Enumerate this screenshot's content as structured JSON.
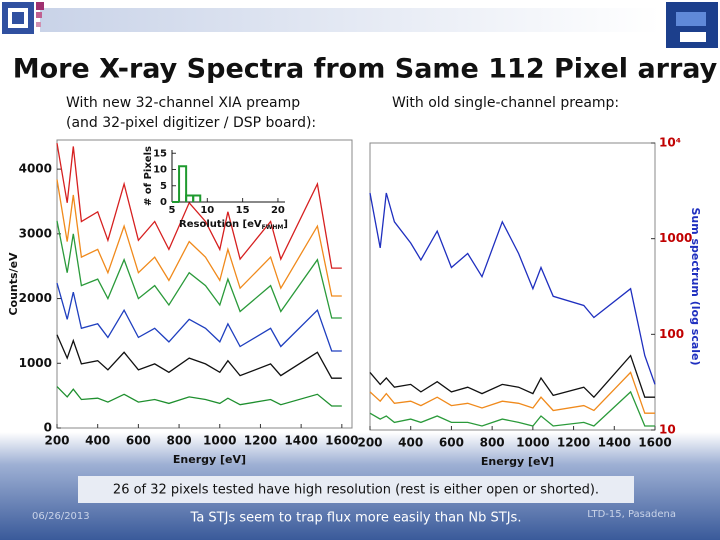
{
  "header": {
    "title": "More X-ray Spectra from Same 112 Pixel array"
  },
  "captions": {
    "left": [
      "With new 32-channel XIA preamp",
      "(and 32-pixel digitizer / DSP board):"
    ],
    "right": "With old single-channel preamp:"
  },
  "chart_data": [
    {
      "type": "line",
      "xlabel": "Energy [eV]",
      "ylabel": "Counts/eV",
      "x": [
        200,
        250,
        280,
        320,
        400,
        450,
        530,
        600,
        680,
        750,
        850,
        930,
        1000,
        1040,
        1100,
        1250,
        1300,
        1480,
        1550,
        1600
      ],
      "xlim": [
        200,
        1650
      ],
      "xticks": [
        200,
        400,
        600,
        800,
        1000,
        1200,
        1400,
        1600
      ],
      "ylim": [
        0,
        4450
      ],
      "yticks": [
        0,
        1000,
        2000,
        3000,
        4000
      ],
      "series": [
        {
          "color": "#d62020",
          "values": [
            4400,
            3480,
            4350,
            3190,
            3340,
            2900,
            3770,
            2900,
            3190,
            2760,
            3480,
            3190,
            2760,
            3340,
            2610,
            3190,
            2610,
            3770,
            2470,
            2470
          ]
        },
        {
          "color": "#f08a1c",
          "values": [
            3840,
            2880,
            3600,
            2640,
            2760,
            2400,
            3120,
            2400,
            2640,
            2280,
            2880,
            2640,
            2280,
            2760,
            2160,
            2640,
            2160,
            3120,
            2040,
            2040
          ]
        },
        {
          "color": "#2a9a3a",
          "values": [
            3200,
            2400,
            3000,
            2200,
            2300,
            2000,
            2600,
            2000,
            2200,
            1900,
            2400,
            2200,
            1900,
            2300,
            1800,
            2200,
            1800,
            2600,
            1700,
            1700
          ]
        },
        {
          "color": "#1f3fbf",
          "values": [
            2240,
            1680,
            2100,
            1540,
            1610,
            1400,
            1820,
            1400,
            1540,
            1330,
            1680,
            1540,
            1330,
            1610,
            1260,
            1540,
            1260,
            1820,
            1190,
            1190
          ]
        },
        {
          "color": "#111111",
          "values": [
            1440,
            1080,
            1350,
            990,
            1040,
            900,
            1170,
            900,
            990,
            860,
            1080,
            990,
            860,
            1040,
            810,
            990,
            810,
            1170,
            770,
            770
          ]
        },
        {
          "color": "#1e8f2e",
          "values": [
            640,
            480,
            600,
            440,
            460,
            400,
            520,
            400,
            440,
            380,
            480,
            440,
            380,
            460,
            360,
            440,
            360,
            520,
            340,
            340
          ]
        }
      ]
    },
    {
      "type": "line",
      "log": true,
      "yaxis_side": "right",
      "tick_color": "#c00000",
      "xlabel": "Energy [eV]",
      "ylabel": "Sum spectrum (log scale)",
      "x": [
        200,
        250,
        280,
        320,
        400,
        450,
        530,
        600,
        680,
        750,
        850,
        930,
        1000,
        1040,
        1100,
        1250,
        1300,
        1480,
        1550,
        1600
      ],
      "xlim": [
        200,
        1600
      ],
      "xticks": [
        200,
        400,
        600,
        800,
        1000,
        1200,
        1400,
        1600
      ],
      "ylim": [
        10,
        10000
      ],
      "yticks": [
        10,
        100,
        1000,
        {
          "value": 10000,
          "label": "10⁴"
        }
      ],
      "series": [
        {
          "color": "#1f2fbf",
          "values": [
            3000,
            800,
            3000,
            1500,
            900,
            600,
            1200,
            500,
            700,
            400,
            1500,
            700,
            300,
            500,
            250,
            200,
            150,
            300,
            60,
            30
          ]
        },
        {
          "color": "#111111",
          "values": [
            40,
            30,
            35,
            28,
            30,
            25,
            32,
            25,
            28,
            24,
            30,
            28,
            24,
            35,
            23,
            28,
            22,
            60,
            22,
            22
          ]
        },
        {
          "color": "#f08a1c",
          "values": [
            25,
            20,
            24,
            19,
            20,
            18,
            22,
            18,
            19,
            17,
            20,
            19,
            17,
            22,
            16,
            18,
            16,
            40,
            15,
            15
          ]
        },
        {
          "color": "#2a9a3a",
          "values": [
            15,
            13,
            14,
            12,
            13,
            12,
            14,
            12,
            12,
            11,
            13,
            12,
            11,
            14,
            11,
            12,
            11,
            25,
            11,
            11
          ]
        }
      ]
    },
    {
      "type": "histogram",
      "color": "#1e9a2e",
      "xlabel": [
        "Resolution [eV",
        "FWHM",
        "]"
      ],
      "ylabel": "# of Pixels",
      "bins": [
        5,
        6,
        7,
        8,
        9
      ],
      "counts": [
        0,
        11,
        2,
        2
      ],
      "xlim": [
        5,
        21
      ],
      "xticks": [
        5,
        10,
        15,
        20
      ],
      "ylim": [
        0,
        16
      ],
      "yticks": [
        0,
        5,
        10,
        15
      ]
    }
  ],
  "footer": {
    "note1": "26 of 32 pixels tested have high resolution (rest is either open or shorted).",
    "note2": "Ta STJs seem to trap flux more easily than Nb STJs.",
    "date": "06/26/2013",
    "venue": "LTD-15, Pasadena"
  }
}
